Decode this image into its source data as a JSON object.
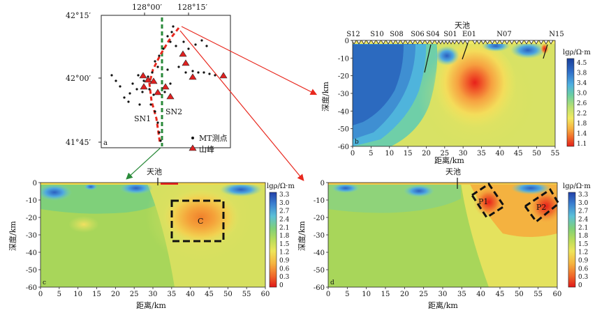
{
  "map": {
    "panel_label": "a",
    "lon_ticks": [
      "128°00′",
      "128°15′"
    ],
    "lat_ticks": [
      "42°15′",
      "42°00′",
      "41°45′"
    ],
    "line_labels": [
      "SN1",
      "SN2"
    ],
    "legend": [
      {
        "symbol": "dot",
        "label": "MT测点"
      },
      {
        "symbol": "triangle",
        "label": "山峰",
        "color": "#e02020"
      }
    ],
    "colors": {
      "sn1_line": "#e8281e",
      "sn2_line": "#2a8a3a",
      "arrow_red": "#e8281e",
      "arrow_green": "#2a8a3a"
    }
  },
  "panels": [
    {
      "id": "b",
      "panel_label": "b",
      "top_label": "天池",
      "stations": [
        "S12",
        "S10",
        "S08",
        "S06",
        "S04",
        "S01",
        "E01",
        "N07",
        "N15"
      ],
      "xlabel": "距离/km",
      "ylabel": "深度/km",
      "xticks": [
        "0",
        "5",
        "10",
        "15",
        "20",
        "25",
        "30",
        "35",
        "40",
        "45",
        "50",
        "55"
      ],
      "yticks": [
        "0",
        "-10",
        "-20",
        "-30",
        "-40",
        "-50",
        "-60"
      ],
      "colorbar_title": "lgρ/Ω·m",
      "colorbar_ticks": [
        "4.5",
        "3.8",
        "3.4",
        "3.0",
        "2.6",
        "2.2",
        "1.8",
        "1.4",
        "1.1"
      ]
    },
    {
      "id": "c",
      "panel_label": "c",
      "top_label": "天池",
      "box_label": "C",
      "xlabel": "距离/km",
      "ylabel": "深度/km",
      "xticks": [
        "0",
        "5",
        "10",
        "15",
        "20",
        "25",
        "30",
        "35",
        "40",
        "45",
        "50",
        "55",
        "60"
      ],
      "yticks": [
        "0",
        "-10",
        "-20",
        "-30",
        "-40",
        "-50",
        "-60"
      ],
      "colorbar_title": "lgρ/Ω·m",
      "colorbar_ticks": [
        "3.3",
        "3.0",
        "2.7",
        "2.4",
        "2.1",
        "1.8",
        "1.5",
        "1.2",
        "0.9",
        "0.6",
        "0.3",
        "0"
      ]
    },
    {
      "id": "d",
      "panel_label": "d",
      "top_label": "天池",
      "box_labels": [
        "P1",
        "P2"
      ],
      "xlabel": "距离/km",
      "ylabel": "深度/km",
      "xticks": [
        "0",
        "5",
        "10",
        "15",
        "20",
        "25",
        "30",
        "35",
        "40",
        "45",
        "50",
        "55",
        "60"
      ],
      "yticks": [
        "0",
        "-10",
        "-20",
        "-30",
        "-40",
        "-50",
        "-60"
      ],
      "colorbar_title": "lgρ/Ω·m",
      "colorbar_ticks": [
        "3.3",
        "3.0",
        "2.7",
        "2.4",
        "2.1",
        "1.8",
        "1.5",
        "1.2",
        "0.9",
        "0.6",
        "0.3",
        "0"
      ]
    }
  ]
}
